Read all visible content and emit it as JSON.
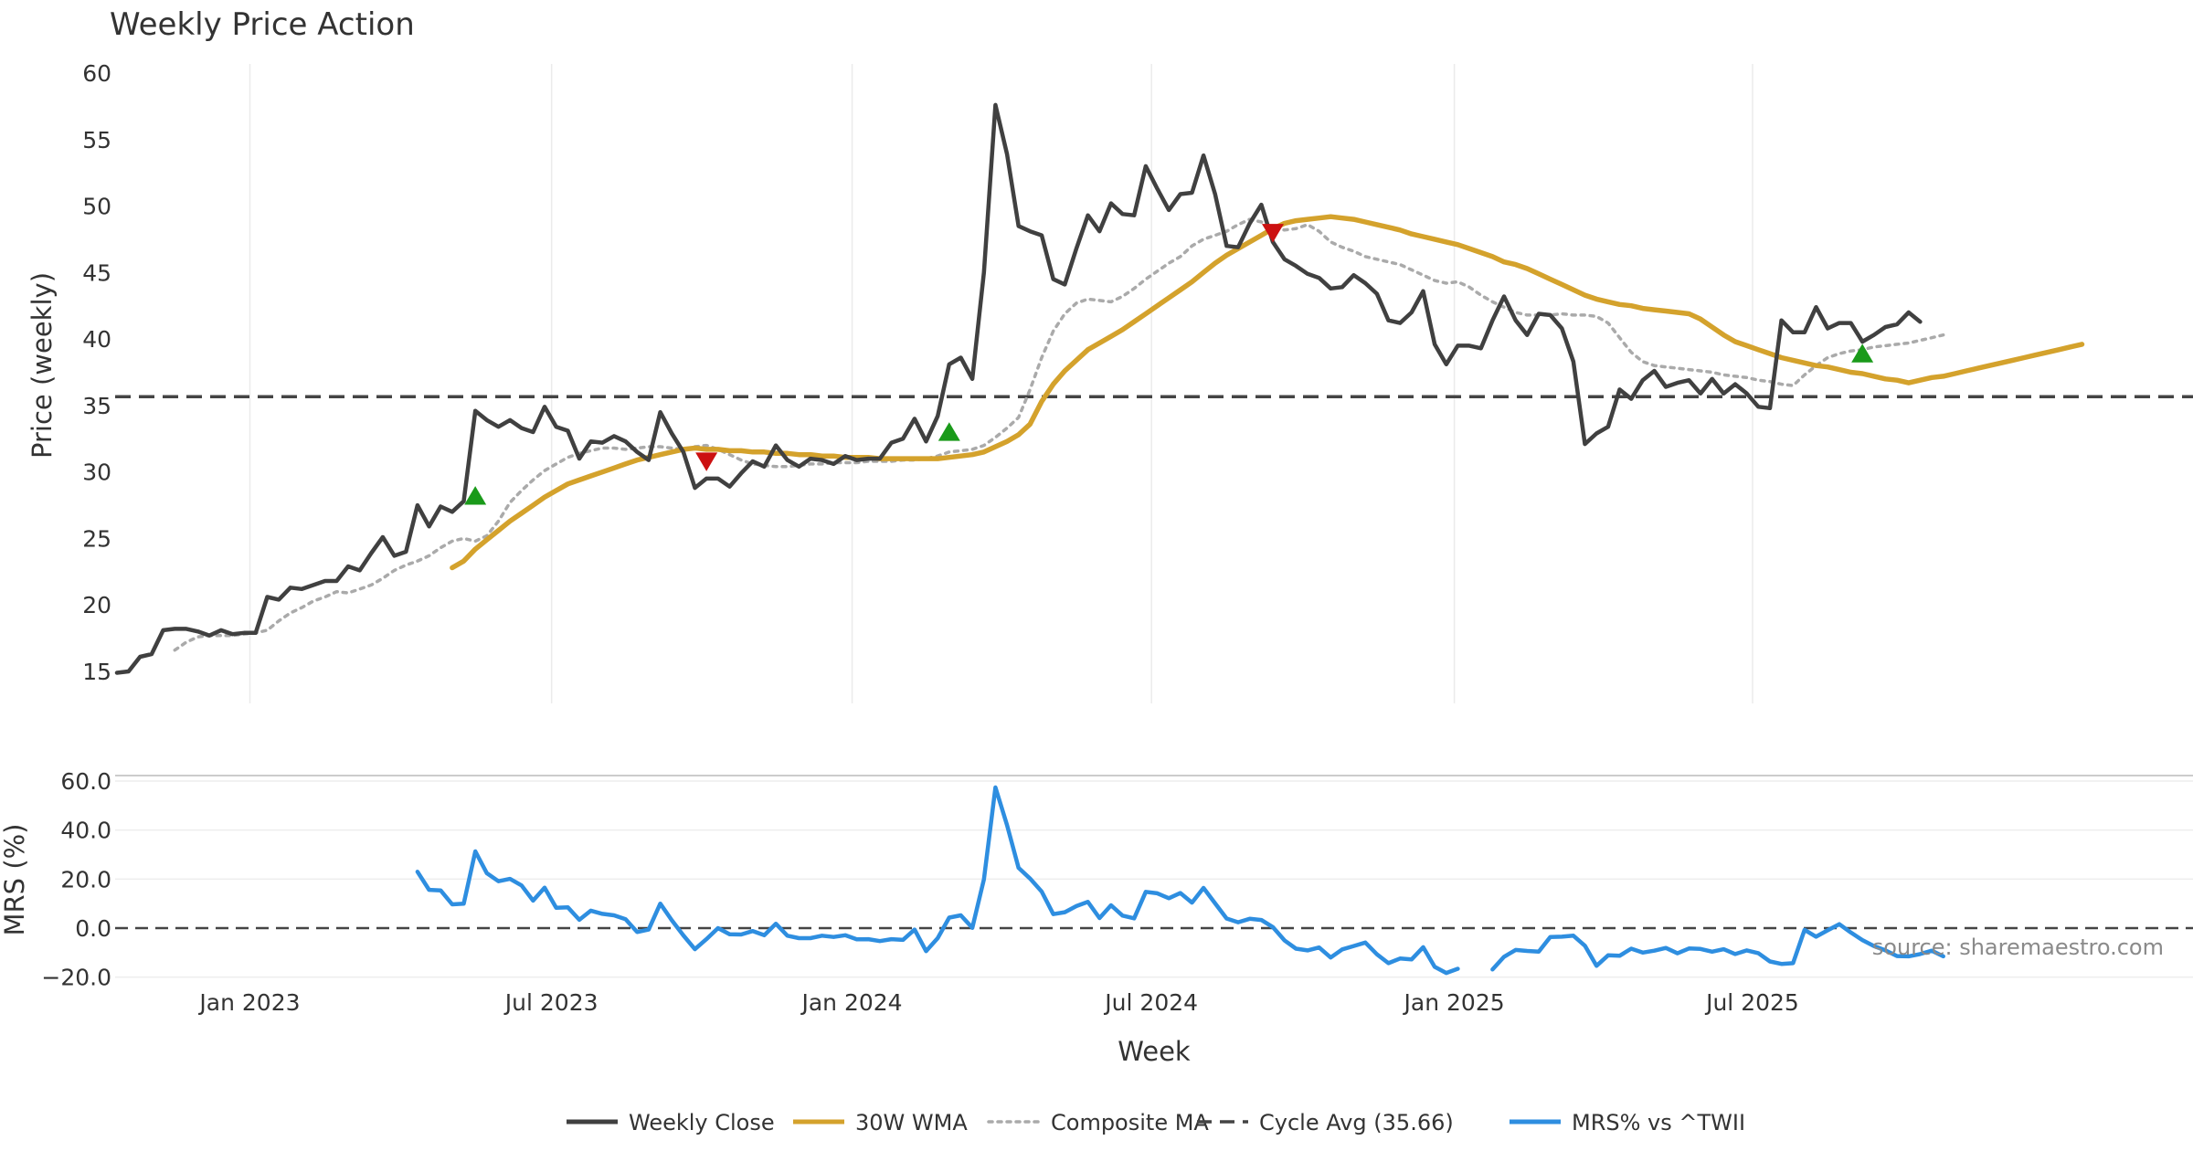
{
  "chart_data": [
    {
      "type": "line",
      "title": "Weekly Price Action",
      "xlabel": "",
      "ylabel": "Price (weekly)",
      "ylim": [
        13,
        60
      ],
      "yticks": [
        15,
        20,
        25,
        30,
        35,
        40,
        45,
        50,
        55,
        60
      ],
      "x_start": "2022-10-17",
      "x_step_days": 7,
      "grid": "vertical",
      "cycle_avg": 35.66,
      "series": [
        {
          "name": "Weekly Close",
          "color": "#404040",
          "values": [
            14.9,
            15.0,
            16.1,
            16.3,
            18.1,
            18.2,
            18.2,
            18.0,
            17.7,
            18.1,
            17.8,
            17.9,
            17.9,
            20.6,
            20.4,
            21.3,
            21.2,
            21.5,
            21.8,
            21.8,
            22.9,
            22.6,
            23.9,
            25.1,
            23.7,
            24.0,
            27.5,
            25.9,
            27.4,
            27.0,
            27.8,
            34.6,
            33.9,
            33.4,
            33.9,
            33.3,
            33.0,
            34.9,
            33.4,
            33.1,
            31.0,
            32.3,
            32.2,
            32.7,
            32.3,
            31.5,
            30.9,
            34.5,
            32.9,
            31.5,
            28.8,
            29.5,
            29.5,
            28.9,
            29.9,
            30.8,
            30.4,
            32.0,
            30.9,
            30.4,
            31.0,
            30.9,
            30.6,
            31.2,
            30.9,
            31.0,
            31.0,
            32.2,
            32.5,
            34.0,
            32.3,
            34.2,
            38.1,
            38.6,
            37.0,
            45.0,
            57.6,
            53.9,
            48.5,
            48.1,
            47.8,
            44.5,
            44.1,
            46.8,
            49.3,
            48.1,
            50.2,
            49.4,
            49.3,
            53.0,
            51.3,
            49.7,
            50.9,
            51.0,
            53.8,
            50.9,
            47.0,
            46.9,
            48.7,
            50.1,
            47.3,
            46.0,
            45.5,
            44.9,
            44.6,
            43.8,
            43.9,
            44.8,
            44.2,
            43.4,
            41.4,
            41.2,
            42.0,
            43.6,
            39.6,
            38.1,
            39.5,
            39.5,
            39.3,
            41.4,
            43.2,
            41.4,
            40.3,
            41.9,
            41.8,
            40.8,
            38.3,
            32.1,
            32.9,
            33.4,
            36.2,
            35.5,
            36.9,
            37.6,
            36.4,
            36.7,
            36.9,
            35.9,
            37.0,
            35.9,
            36.6,
            35.9,
            34.9,
            34.8,
            41.4,
            40.5,
            40.5,
            42.4,
            40.8,
            41.2,
            41.2,
            39.8,
            40.3,
            40.9,
            41.1,
            42.0,
            41.3
          ]
        },
        {
          "name": "30W WMA",
          "color": "#d4a22c",
          "start_index": 29,
          "values": [
            22.8,
            23.3,
            24.2,
            24.9,
            25.6,
            26.3,
            26.9,
            27.5,
            28.1,
            28.6,
            29.1,
            29.4,
            29.7,
            30.0,
            30.3,
            30.6,
            30.9,
            31.1,
            31.3,
            31.5,
            31.7,
            31.8,
            31.7,
            31.7,
            31.6,
            31.6,
            31.5,
            31.5,
            31.4,
            31.4,
            31.3,
            31.3,
            31.2,
            31.2,
            31.1,
            31.1,
            31.1,
            31.0,
            31.0,
            31.0,
            31.0,
            31.0,
            31.0,
            31.1,
            31.2,
            31.3,
            31.5,
            31.9,
            32.3,
            32.8,
            33.6,
            35.3,
            36.6,
            37.6,
            38.4,
            39.2,
            39.7,
            40.2,
            40.7,
            41.3,
            41.9,
            42.5,
            43.1,
            43.7,
            44.3,
            45.0,
            45.7,
            46.3,
            46.8,
            47.3,
            47.8,
            48.3,
            48.7,
            48.9,
            49.0,
            49.1,
            49.2,
            49.1,
            49.0,
            48.8,
            48.6,
            48.4,
            48.2,
            47.9,
            47.7,
            47.5,
            47.3,
            47.1,
            46.8,
            46.5,
            46.2,
            45.8,
            45.6,
            45.3,
            44.9,
            44.5,
            44.1,
            43.7,
            43.3,
            43.0,
            42.8,
            42.6,
            42.5,
            42.3,
            42.2,
            42.1,
            42.0,
            41.9,
            41.5,
            40.9,
            40.3,
            39.8,
            39.5,
            39.2,
            38.9,
            38.6,
            38.4,
            38.2,
            38.0,
            37.9,
            37.7,
            37.5,
            37.4,
            37.2,
            37.0,
            36.9,
            36.7,
            36.9,
            37.1,
            37.2,
            37.4,
            37.6,
            37.8,
            38.0,
            38.2,
            38.4,
            38.6,
            38.8,
            39.0,
            39.2,
            39.4,
            39.6
          ]
        },
        {
          "name": "Composite MA",
          "color": "#aaaaaa",
          "start_index": 5,
          "values": [
            16.6,
            17.2,
            17.6,
            17.7,
            17.7,
            17.7,
            17.8,
            17.9,
            18.1,
            18.8,
            19.4,
            19.8,
            20.3,
            20.6,
            21.0,
            20.9,
            21.2,
            21.5,
            22.0,
            22.6,
            23.0,
            23.3,
            23.7,
            24.3,
            24.8,
            25.0,
            24.8,
            25.2,
            26.3,
            27.7,
            28.6,
            29.4,
            30.1,
            30.6,
            31.1,
            31.4,
            31.6,
            31.8,
            31.8,
            31.7,
            31.8,
            31.9,
            31.9,
            31.8,
            31.7,
            31.9,
            32.0,
            31.7,
            31.3,
            30.9,
            30.6,
            30.5,
            30.4,
            30.4,
            30.5,
            30.6,
            30.6,
            30.7,
            30.7,
            30.7,
            30.8,
            30.8,
            30.8,
            30.9,
            30.9,
            31.0,
            31.2,
            31.5,
            31.6,
            31.7,
            32.0,
            32.6,
            33.3,
            34.1,
            36.2,
            38.6,
            40.6,
            41.9,
            42.7,
            43.0,
            42.9,
            42.8,
            43.2,
            43.8,
            44.5,
            45.1,
            45.7,
            46.2,
            47.0,
            47.5,
            47.8,
            48.1,
            48.6,
            49.0,
            48.8,
            48.4,
            48.2,
            48.3,
            48.6,
            48.1,
            47.3,
            46.9,
            46.6,
            46.2,
            46.0,
            45.8,
            45.6,
            45.2,
            44.8,
            44.4,
            44.2,
            44.3,
            43.9,
            43.3,
            42.8,
            42.4,
            42.0,
            41.8,
            41.8,
            41.8,
            41.9,
            41.8,
            41.8,
            41.7,
            41.2,
            40.1,
            39.0,
            38.3,
            38.0,
            37.9,
            37.8,
            37.7,
            37.6,
            37.5,
            37.3,
            37.2,
            37.1,
            36.9,
            36.8,
            36.6,
            36.5,
            37.3,
            38.0,
            38.6,
            38.9,
            39.1,
            39.2,
            39.4,
            39.5,
            39.6,
            39.7,
            39.9,
            40.1,
            40.3
          ]
        }
      ],
      "signals": [
        {
          "type": "buy",
          "index": 31,
          "value": 28.2,
          "color": "#1a9a1a"
        },
        {
          "type": "sell",
          "index": 51,
          "value": 30.8,
          "color": "#cc1111"
        },
        {
          "type": "buy",
          "index": 72,
          "value": 33.0,
          "color": "#1a9a1a"
        },
        {
          "type": "sell",
          "index": 100,
          "value": 48.0,
          "color": "#cc1111"
        },
        {
          "type": "buy",
          "index": 151,
          "value": 38.9,
          "color": "#1a9a1a"
        }
      ]
    },
    {
      "type": "line",
      "title": "",
      "xlabel": "Week",
      "ylabel": "MRS (%)",
      "ylim": [
        -21,
        62
      ],
      "yticks": [
        "60.0",
        "40.0",
        "20.0",
        "0.0",
        "−20.0"
      ],
      "ytick_values": [
        60,
        40,
        20,
        0,
        -20
      ],
      "xticks": [
        "Jan 2023",
        "Jul 2023",
        "Jan 2024",
        "Jul 2024",
        "Jan 2025",
        "Jul 2025"
      ],
      "xtick_weeks": [
        11.5,
        37.6,
        63.6,
        89.5,
        115.7,
        141.5
      ],
      "grid": "horizontal",
      "zero_line": 0,
      "series": [
        {
          "name": "MRS% vs ^TWII",
          "color": "#2e8ee0",
          "start_index": 26,
          "values": [
            23,
            15.6,
            15.4,
            9.7,
            10,
            31.3,
            22.4,
            19.1,
            20.1,
            17.4,
            11.2,
            16.5,
            8.3,
            8.5,
            3.4,
            7.1,
            5.8,
            5.2,
            3.6,
            -1.6,
            -0.6,
            10,
            3.2,
            -3,
            -8.6,
            -4.5,
            0,
            -2.5,
            -2.6,
            -1.2,
            -2.9,
            1.8,
            -3.1,
            -4.1,
            -4.1,
            -3.1,
            -3.6,
            -2.9,
            -4.6,
            -4.5,
            -5.3,
            -4.5,
            -4.8,
            -0.6,
            -9.4,
            -4.1,
            4.3,
            5.2,
            0.1,
            19.9,
            57.4,
            42,
            24.6,
            20.2,
            14.9,
            5.7,
            6.5,
            9,
            10.7,
            4.1,
            9.3,
            5.1,
            4,
            14.8,
            14.2,
            12.2,
            14.3,
            10.4,
            16.4,
            10.1,
            3.9,
            2.4,
            3.8,
            3.3,
            0.4,
            -5,
            -8.4,
            -9.1,
            -7.9,
            -12,
            -8.7,
            -7.3,
            -5.9,
            -10.7,
            -14.3,
            -12.4,
            -12.8,
            -7.8,
            -15.8,
            -18.3,
            -16.6,
            null,
            null,
            -16.9,
            -11.7,
            -8.9,
            -9.3,
            -9.6,
            -3.6,
            -3.5,
            -3.1,
            -7.2,
            -15.4,
            -11.1,
            -11.3,
            -8.4,
            -10,
            -9.2,
            -8.1,
            -10.3,
            -8.3,
            -8.5,
            -9.6,
            -8.6,
            -10.6,
            -9.1,
            -10.2,
            -13.6,
            -14.6,
            -14.3,
            -0.7,
            -3.5,
            -0.9,
            1.6,
            -1.8,
            -4.9,
            -7.3,
            -9.1,
            -11.4,
            -11.5,
            -10.6,
            -9.2,
            -11.5
          ]
        }
      ]
    }
  ],
  "legend": {
    "items": [
      {
        "label": "Weekly Close",
        "color": "#404040",
        "style": "solid"
      },
      {
        "label": "30W WMA",
        "color": "#d4a22c",
        "style": "solid"
      },
      {
        "label": "Composite MA",
        "color": "#aaaaaa",
        "style": "dotted"
      },
      {
        "label": "Cycle Avg (35.66)",
        "color": "#444444",
        "style": "dashed"
      },
      {
        "label": "MRS% vs ^TWII",
        "color": "#2e8ee0",
        "style": "solid"
      }
    ]
  },
  "watermark": "source: sharemaestro.com"
}
